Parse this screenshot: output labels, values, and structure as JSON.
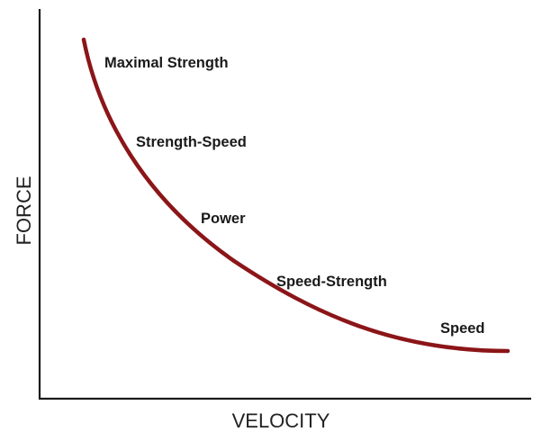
{
  "axes": {
    "x_title": "VELOCITY",
    "y_title": "FORCE"
  },
  "curve": {
    "color": "#8b1518",
    "axis_color": "#1a1a1a"
  },
  "zones": [
    {
      "label": "Maximal Strength"
    },
    {
      "label": "Strength-Speed"
    },
    {
      "label": "Power"
    },
    {
      "label": "Speed-Strength"
    },
    {
      "label": "Speed"
    }
  ]
}
